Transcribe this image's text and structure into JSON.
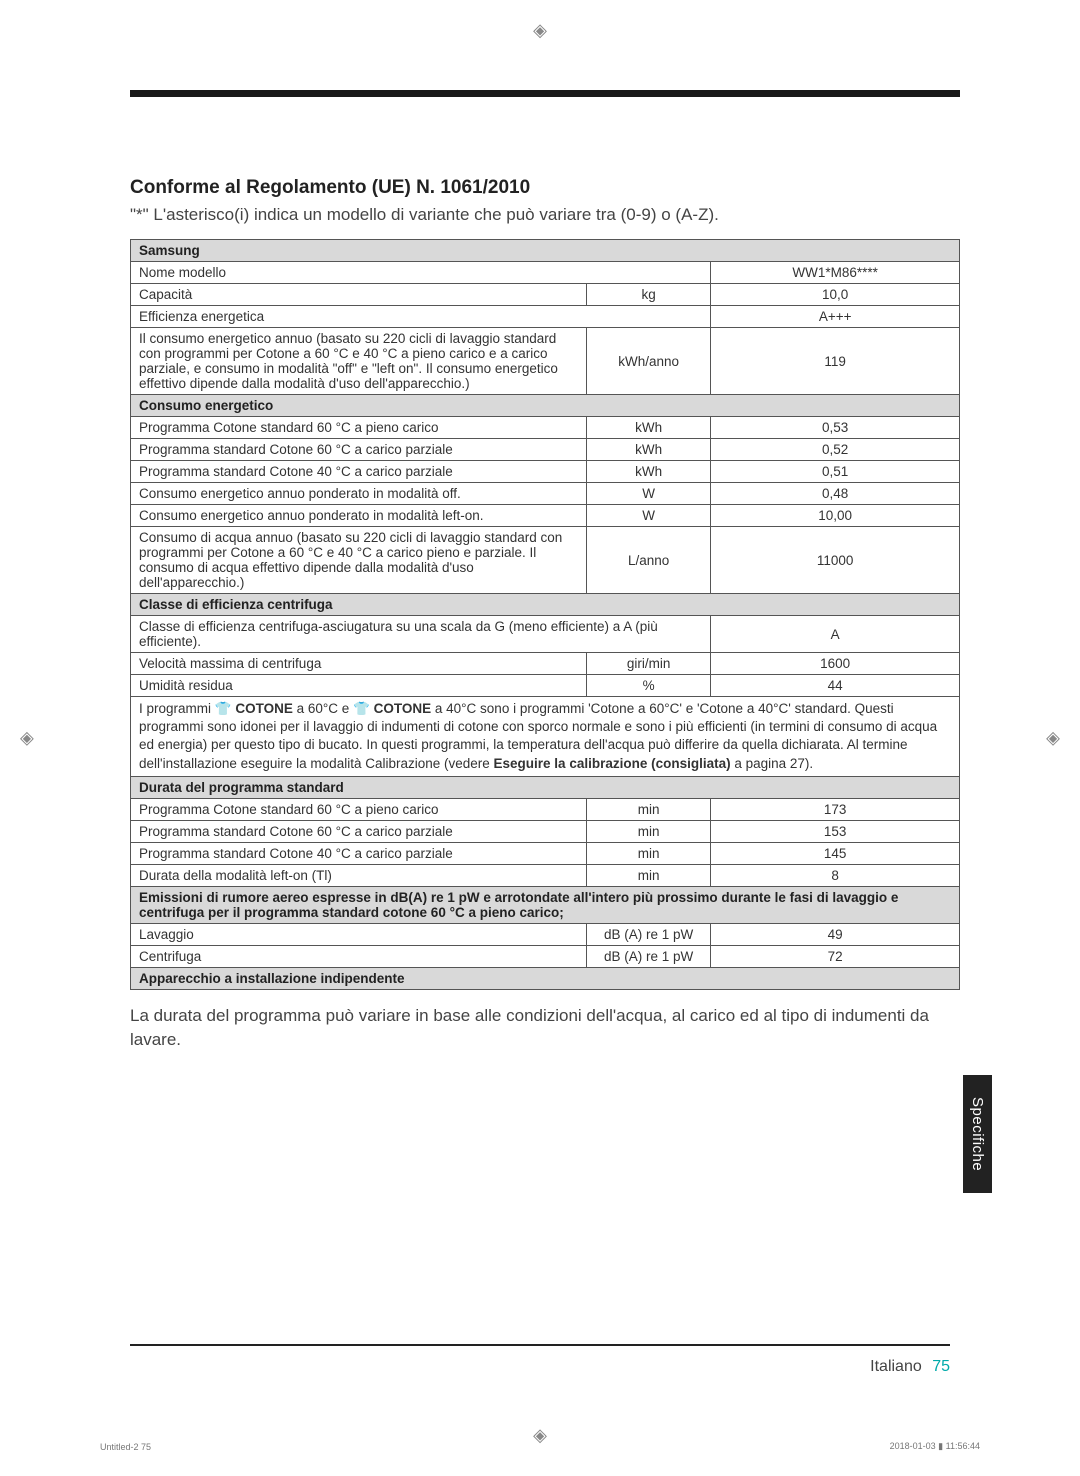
{
  "cropmark_glyph": "◈",
  "heading": {
    "title": "Conforme al Regolamento (UE) N. 1061/2010",
    "subtitle": "\"*\" L'asterisco(i) indica un modello di variante che può variare tra (0-9) o (A-Z)."
  },
  "table": {
    "brand_header": "Samsung",
    "rows_top": [
      {
        "desc": "Nome modello",
        "unit": "",
        "val": "WW1*M86****",
        "span_desc_unit": true
      },
      {
        "desc": "Capacità",
        "unit": "kg",
        "val": "10,0"
      },
      {
        "desc": "Efficienza energetica",
        "unit": "",
        "val": "A+++",
        "span_desc_unit": true
      },
      {
        "desc": "Il consumo energetico annuo (basato su 220 cicli di lavaggio standard con programmi per Cotone a 60 °C e 40 °C a pieno carico e a carico parziale, e consumo in modalità \"off\" e \"left on\". Il consumo energetico effettivo dipende dalla modalità d'uso dell'apparecchio.)",
        "unit": "kWh/anno",
        "val": "119"
      }
    ],
    "section_consumo": "Consumo energetico",
    "rows_consumo": [
      {
        "desc": "Programma Cotone standard 60 °C a pieno carico",
        "unit": "kWh",
        "val": "0,53"
      },
      {
        "desc": "Programma standard Cotone 60 °C a carico parziale",
        "unit": "kWh",
        "val": "0,52"
      },
      {
        "desc": "Programma standard Cotone 40 °C a carico parziale",
        "unit": "kWh",
        "val": "0,51"
      },
      {
        "desc": "Consumo energetico annuo ponderato in modalità off.",
        "unit": "W",
        "val": "0,48"
      },
      {
        "desc": "Consumo energetico annuo ponderato in modalità left-on.",
        "unit": "W",
        "val": "10,00"
      },
      {
        "desc": "Consumo di acqua annuo (basato su 220 cicli di lavaggio standard con programmi per Cotone a 60 °C e 40 °C a carico pieno e parziale. Il consumo di acqua effettivo dipende dalla modalità d'uso dell'apparecchio.)",
        "unit": "L/anno",
        "val": "11000"
      }
    ],
    "section_classe": "Classe di efficienza centrifuga",
    "rows_classe": [
      {
        "desc": "Classe di efficienza centrifuga-asciugatura su una scala da G (meno efficiente) a A (più efficiente).",
        "unit": "",
        "val": "A",
        "span_desc_unit": true
      },
      {
        "desc": "Velocità massima di centrifuga",
        "unit": "giri/min",
        "val": "1600"
      },
      {
        "desc": "Umidità residua",
        "unit": "%",
        "val": "44"
      }
    ],
    "note_programmi_prefix": "I programmi ",
    "note_programmi_icon1": "👕 COTONE",
    "note_programmi_mid1": " a 60°C e ",
    "note_programmi_icon2": "👕 COTONE",
    "note_programmi_mid2": " a 40°C sono i programmi 'Cotone a 60°C' e 'Cotone a 40°C' standard. Questi programmi sono idonei per il lavaggio di indumenti di cotone con sporco normale e sono i più efficienti (in termini di consumo di acqua ed energia) per questo tipo di bucato. In questi programmi, la temperatura dell'acqua può differire da quella dichiarata. Al termine dell'installazione eseguire la modalità Calibrazione (vedere ",
    "note_programmi_bold": "Eseguire la calibrazione (consigliata)",
    "note_programmi_suffix": " a pagina 27).",
    "section_durata": "Durata del programma standard",
    "rows_durata": [
      {
        "desc": "Programma Cotone standard 60 °C a pieno carico",
        "unit": "min",
        "val": "173"
      },
      {
        "desc": "Programma standard Cotone 60 °C a carico parziale",
        "unit": "min",
        "val": "153"
      },
      {
        "desc": "Programma standard Cotone 40 °C a carico parziale",
        "unit": "min",
        "val": "145"
      },
      {
        "desc": "Durata della modalità left-on (Tl)",
        "unit": "min",
        "val": "8"
      }
    ],
    "section_emissioni": "Emissioni di rumore aereo espresse in dB(A) re 1 pW e arrotondate all'intero più prossimo durante le fasi di lavaggio e centrifuga per il programma standard cotone 60 °C a pieno carico;",
    "rows_emissioni": [
      {
        "desc": "Lavaggio",
        "unit": "dB (A) re 1 pW",
        "val": "49"
      },
      {
        "desc": "Centrifuga",
        "unit": "dB (A) re 1 pW",
        "val": "72"
      }
    ],
    "section_apparecchio": "Apparecchio a installazione indipendente"
  },
  "after_note": "La durata del programma può variare in base alle condizioni dell'acqua, al carico ed al tipo di indumenti da lavare.",
  "side_tab": "Specifiche",
  "footer": {
    "lang": "Italiano",
    "page": "75"
  },
  "tiny_left": "Untitled-2   75",
  "tiny_right": "2018-01-03   ▮ 11:56:44",
  "colors": {
    "header_bg": "#d9d9d9",
    "border": "#555555",
    "text": "#333333",
    "accent": "#00a0a0",
    "tab_bg": "#222222"
  }
}
